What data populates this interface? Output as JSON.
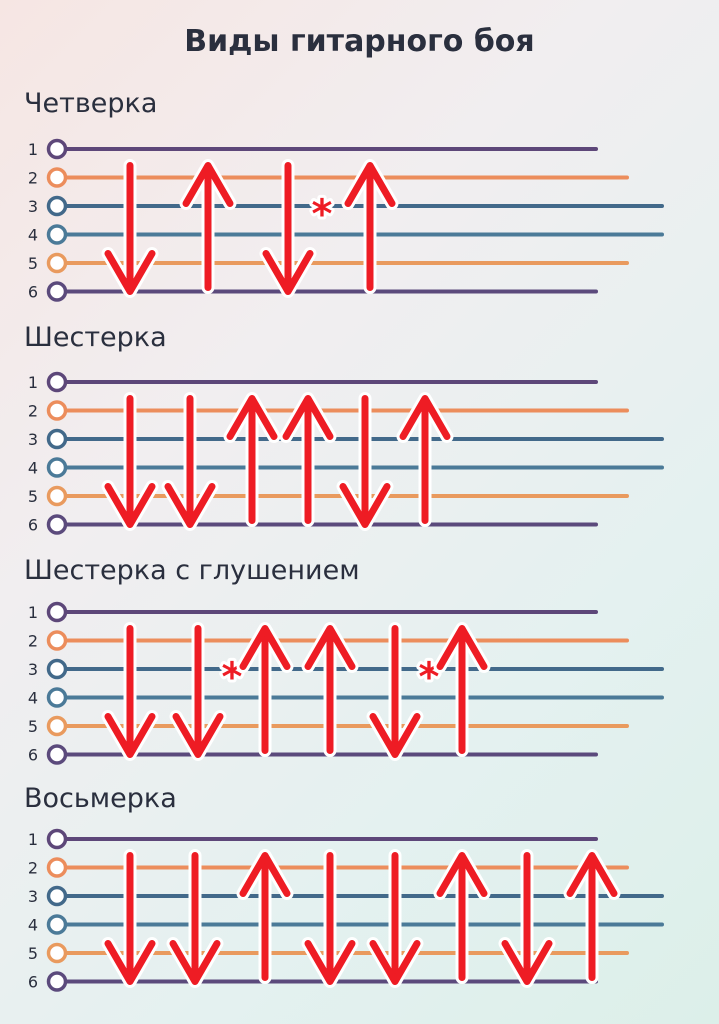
{
  "title": "Виды гитарного боя",
  "string_numbers": [
    "1",
    "2",
    "3",
    "4",
    "5",
    "6"
  ],
  "string_colors": [
    "#5d4779",
    "#ec8d5c",
    "#42698a",
    "#4b7a98",
    "#e99a5e",
    "#5b4a7c"
  ],
  "mark_symbol": "*",
  "patterns": [
    {
      "name": "Четверка",
      "strokes": [
        "down",
        "up",
        "down-mute",
        "up"
      ]
    },
    {
      "name": "Шестерка",
      "strokes": [
        "down",
        "down",
        "up",
        "up",
        "down",
        "up"
      ]
    },
    {
      "name": "Шестерка с глушением",
      "strokes": [
        "down",
        "down-mute",
        "up",
        "up",
        "down-mute",
        "up"
      ]
    },
    {
      "name": "Восьмерка",
      "strokes": [
        "down",
        "down",
        "up",
        "down",
        "down",
        "up",
        "down",
        "up"
      ]
    }
  ]
}
